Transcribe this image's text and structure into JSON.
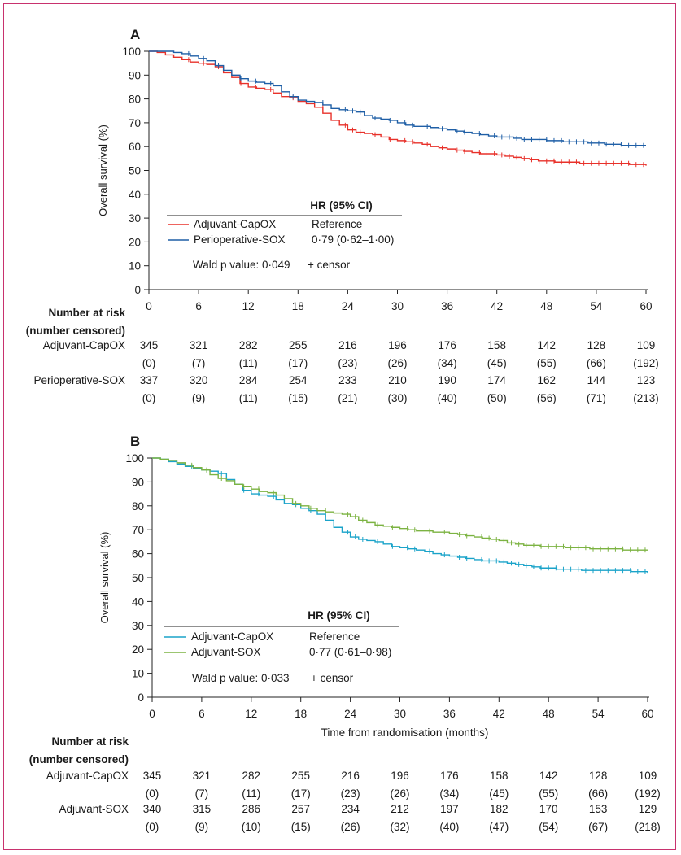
{
  "panels": [
    {
      "letter": "A",
      "chart_data": {
        "type": "line",
        "title": "",
        "xlabel": "",
        "ylabel": "Overall survival (%)",
        "xlim": [
          0,
          60
        ],
        "ylim": [
          0,
          100
        ],
        "xticks": [
          "0",
          "6",
          "12",
          "18",
          "24",
          "30",
          "36",
          "42",
          "48",
          "54",
          "60"
        ],
        "yticks": [
          "0",
          "10",
          "20",
          "30",
          "40",
          "50",
          "60",
          "70",
          "80",
          "90",
          "100"
        ],
        "series": [
          {
            "name": "Adjuvant-CapOX",
            "color": "#e8312a",
            "hr": "Reference",
            "x": [
              0,
              1,
              2,
              3,
              4,
              5,
              6,
              7,
              8,
              9,
              10,
              11,
              12,
              13,
              14,
              15,
              16,
              17,
              18,
              19,
              20,
              21,
              22,
              23,
              24,
              25,
              26,
              27,
              28,
              29,
              30,
              31,
              32,
              33,
              34,
              35,
              36,
              37,
              38,
              39,
              40,
              41,
              42,
              43,
              44,
              45,
              46,
              47,
              48,
              49,
              50,
              51,
              52,
              53,
              54,
              55,
              56,
              57,
              58,
              59,
              60
            ],
            "y": [
              100,
              99.5,
              98.5,
              97.5,
              96.5,
              95.5,
              95,
              94.5,
              93.5,
              91,
              89,
              86.5,
              85,
              84.5,
              84,
              82.5,
              81,
              80.5,
              79,
              78,
              76.5,
              74,
              71,
              69,
              67,
              66,
              65.5,
              65,
              64,
              63,
              62.5,
              62,
              61.5,
              61,
              60,
              59.5,
              59,
              58.5,
              58,
              57.5,
              57,
              57,
              56.5,
              56,
              55.5,
              55,
              54.5,
              54,
              54,
              53.5,
              53.5,
              53.5,
              53,
              53,
              53,
              53,
              53,
              53,
              52.5,
              52.5,
              52
            ]
          },
          {
            "name": "Perioperative-SOX",
            "color": "#1f5fa6",
            "hr": "0·79 (0·62–1·00)",
            "x": [
              0,
              1,
              2,
              3,
              4,
              5,
              6,
              7,
              8,
              9,
              10,
              11,
              12,
              13,
              14,
              15,
              16,
              17,
              18,
              19,
              20,
              21,
              22,
              23,
              24,
              25,
              26,
              27,
              28,
              29,
              30,
              31,
              32,
              33,
              34,
              35,
              36,
              37,
              38,
              39,
              40,
              41,
              42,
              43,
              44,
              45,
              46,
              47,
              48,
              49,
              50,
              51,
              52,
              53,
              54,
              55,
              56,
              57,
              58,
              59,
              60
            ],
            "y": [
              100,
              100,
              100,
              99.5,
              99,
              98,
              97,
              96,
              94,
              92,
              90,
              88.5,
              87.5,
              87,
              86.5,
              85.5,
              83,
              81,
              79.5,
              79,
              78.5,
              77.5,
              76,
              75.5,
              75,
              74.5,
              73,
              72,
              71.5,
              71,
              70,
              69,
              68.5,
              68.5,
              68,
              67.5,
              67,
              66.5,
              66,
              65.5,
              65,
              64.5,
              64,
              64,
              63.5,
              63,
              63,
              63,
              62.5,
              62.5,
              62,
              62,
              62,
              61.5,
              61.5,
              61,
              61,
              60.5,
              60.5,
              60.5,
              60.5
            ]
          }
        ],
        "legend": {
          "header": "HR (95% CI)",
          "wald": "Wald p value: 0·049",
          "censor": "+ censor"
        }
      },
      "risk": {
        "header_line1": "Number at risk",
        "header_line2": "(number censored)",
        "rows": [
          {
            "label": "Adjuvant-CapOX",
            "at_risk": [
              "345",
              "321",
              "282",
              "255",
              "216",
              "196",
              "176",
              "158",
              "142",
              "128",
              "109"
            ],
            "censored": [
              "(0)",
              "(7)",
              "(11)",
              "(17)",
              "(23)",
              "(26)",
              "(34)",
              "(45)",
              "(55)",
              "(66)",
              "(192)"
            ]
          },
          {
            "label": "Perioperative-SOX",
            "at_risk": [
              "337",
              "320",
              "284",
              "254",
              "233",
              "210",
              "190",
              "174",
              "162",
              "144",
              "123"
            ],
            "censored": [
              "(0)",
              "(9)",
              "(11)",
              "(15)",
              "(21)",
              "(30)",
              "(40)",
              "(50)",
              "(56)",
              "(71)",
              "(213)"
            ]
          }
        ]
      }
    },
    {
      "letter": "B",
      "chart_data": {
        "type": "line",
        "title": "",
        "xlabel": "Time from randomisation (months)",
        "ylabel": "Overall survival (%)",
        "xlim": [
          0,
          60
        ],
        "ylim": [
          0,
          100
        ],
        "xticks": [
          "0",
          "6",
          "12",
          "18",
          "24",
          "30",
          "36",
          "42",
          "48",
          "54",
          "60"
        ],
        "yticks": [
          "0",
          "10",
          "20",
          "30",
          "40",
          "50",
          "60",
          "70",
          "80",
          "90",
          "100"
        ],
        "series": [
          {
            "name": "Adjuvant-CapOX",
            "color": "#1aa3c9",
            "hr": "Reference",
            "x": [
              0,
              1,
              2,
              3,
              4,
              5,
              6,
              7,
              8,
              9,
              10,
              11,
              12,
              13,
              14,
              15,
              16,
              17,
              18,
              19,
              20,
              21,
              22,
              23,
              24,
              25,
              26,
              27,
              28,
              29,
              30,
              31,
              32,
              33,
              34,
              35,
              36,
              37,
              38,
              39,
              40,
              41,
              42,
              43,
              44,
              45,
              46,
              47,
              48,
              49,
              50,
              51,
              52,
              53,
              54,
              55,
              56,
              57,
              58,
              59,
              60
            ],
            "y": [
              100,
              99.5,
              98.5,
              97.5,
              96.5,
              95.5,
              95,
              94.5,
              93.5,
              91,
              89,
              86.5,
              85,
              84.5,
              84,
              82.5,
              81,
              80.5,
              79,
              78,
              76.5,
              74,
              71,
              69,
              67,
              66,
              65.5,
              65,
              64,
              63,
              62.5,
              62,
              61.5,
              61,
              60,
              59.5,
              59,
              58.5,
              58,
              57.5,
              57,
              57,
              56.5,
              56,
              55.5,
              55,
              54.5,
              54,
              54,
              53.5,
              53.5,
              53.5,
              53,
              53,
              53,
              53,
              53,
              53,
              52.5,
              52.5,
              52
            ]
          },
          {
            "name": "Adjuvant-SOX",
            "color": "#7cb342",
            "hr": "0·77 (0·61–0·98)",
            "x": [
              0,
              1,
              2,
              3,
              4,
              5,
              6,
              7,
              8,
              9,
              10,
              11,
              12,
              13,
              14,
              15,
              16,
              17,
              18,
              19,
              20,
              21,
              22,
              23,
              24,
              25,
              26,
              27,
              28,
              29,
              30,
              31,
              32,
              33,
              34,
              35,
              36,
              37,
              38,
              39,
              40,
              41,
              42,
              43,
              44,
              45,
              46,
              47,
              48,
              49,
              50,
              51,
              52,
              53,
              54,
              55,
              56,
              57,
              58,
              59,
              60
            ],
            "y": [
              100,
              99.5,
              99,
              98,
              97,
              96,
              95,
              93,
              91.5,
              90.5,
              89,
              88,
              87,
              86,
              85.5,
              84.5,
              83,
              81,
              80,
              79,
              78,
              77.5,
              77,
              76.5,
              75.5,
              74,
              73,
              72,
              71.5,
              71,
              70.5,
              70,
              69.5,
              69.5,
              69,
              69,
              68.5,
              68,
              67.5,
              67,
              66.5,
              66,
              65.5,
              64.5,
              64,
              63.5,
              63.5,
              63,
              63,
              63,
              62.5,
              62.5,
              62.5,
              62,
              62,
              62,
              62,
              61.5,
              61.5,
              61.5,
              61.5
            ]
          }
        ],
        "legend": {
          "header": "HR (95% CI)",
          "wald": "Wald p value: 0·033",
          "censor": "+ censor"
        }
      },
      "risk": {
        "header_line1": "Number at risk",
        "header_line2": "(number censored)",
        "rows": [
          {
            "label": "Adjuvant-CapOX",
            "at_risk": [
              "345",
              "321",
              "282",
              "255",
              "216",
              "196",
              "176",
              "158",
              "142",
              "128",
              "109"
            ],
            "censored": [
              "(0)",
              "(7)",
              "(11)",
              "(17)",
              "(23)",
              "(26)",
              "(34)",
              "(45)",
              "(55)",
              "(66)",
              "(192)"
            ]
          },
          {
            "label": "Adjuvant-SOX",
            "at_risk": [
              "340",
              "315",
              "286",
              "257",
              "234",
              "212",
              "197",
              "182",
              "170",
              "153",
              "129"
            ],
            "censored": [
              "(0)",
              "(9)",
              "(10)",
              "(15)",
              "(26)",
              "(32)",
              "(40)",
              "(47)",
              "(54)",
              "(67)",
              "(218)"
            ]
          }
        ]
      }
    }
  ]
}
